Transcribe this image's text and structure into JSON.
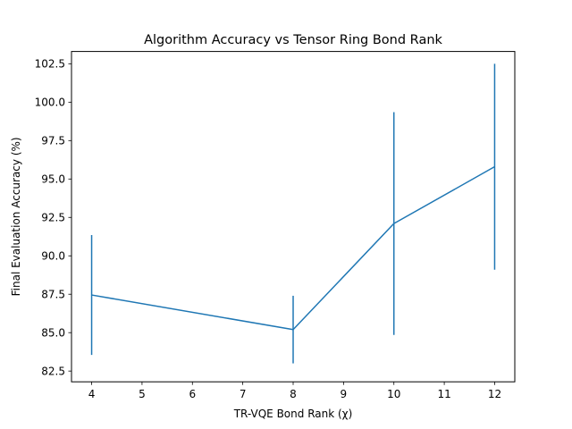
{
  "chart_data": {
    "type": "line",
    "title": "Algorithm Accuracy vs Tensor Ring Bond Rank",
    "xlabel": "TR-VQE Bond Rank (χ)",
    "ylabel": "Final Evaluation Accuracy (%)",
    "xlim": [
      3.6,
      12.4
    ],
    "ylim": [
      81.8,
      103.3
    ],
    "x_ticks": [
      4,
      5,
      6,
      7,
      8,
      9,
      10,
      11,
      12
    ],
    "y_ticks": [
      82.5,
      85.0,
      87.5,
      90.0,
      92.5,
      95.0,
      97.5,
      100.0,
      102.5
    ],
    "y_tick_labels": [
      "82.5",
      "85.0",
      "87.5",
      "90.0",
      "92.5",
      "95.0",
      "97.5",
      "100.0",
      "102.5"
    ],
    "grid": false,
    "series": [
      {
        "color": "#1f77b4",
        "x": [
          4,
          8,
          10,
          12
        ],
        "y": [
          87.45,
          85.2,
          92.1,
          95.8
        ],
        "error": [
          3.9,
          2.2,
          7.25,
          6.7
        ]
      }
    ]
  }
}
